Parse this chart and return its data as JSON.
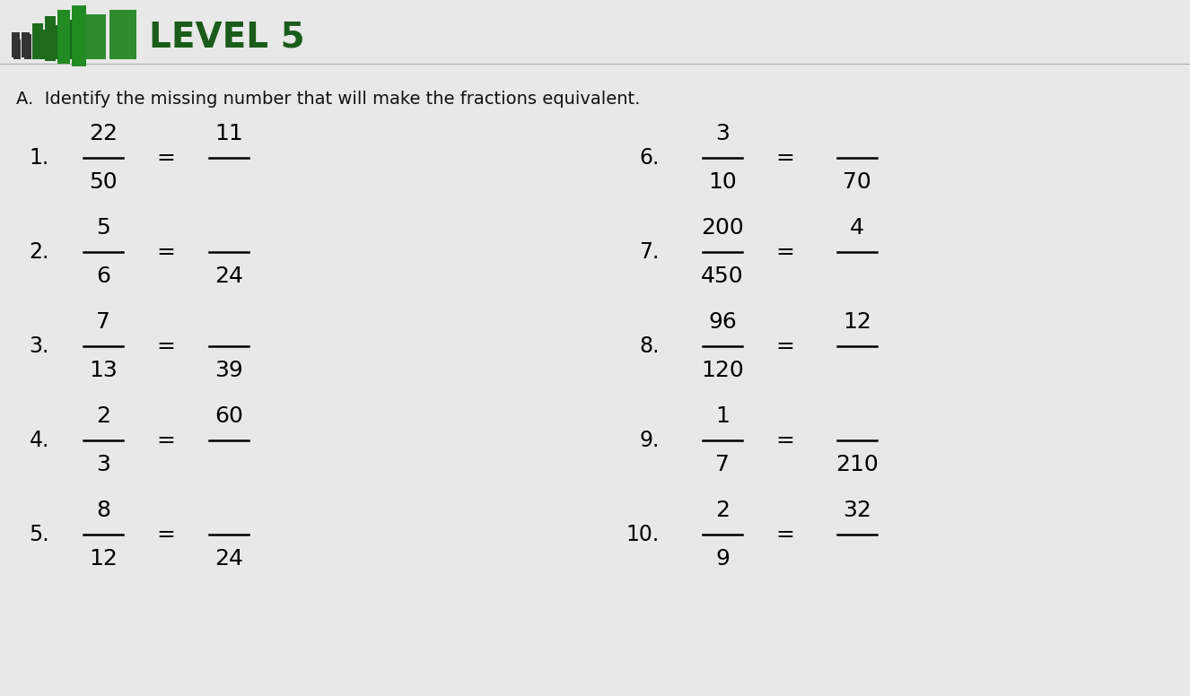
{
  "bg_color": "#e8e8e8",
  "title_bar_color": "#2e7d32",
  "title_text": "LEVEL 5",
  "instruction": "A.  Identify the missing number that will make the fractions equivalent.",
  "problems_left": [
    {
      "num": "1.",
      "frac_top": "22",
      "frac_bot": "50",
      "eq": "=",
      "ans_top": "11",
      "ans_bot": null
    },
    {
      "num": "2.",
      "frac_top": "5",
      "frac_bot": "6",
      "eq": "=",
      "ans_top": null,
      "ans_bot": "24"
    },
    {
      "num": "3.",
      "frac_top": "7",
      "frac_bot": "13",
      "eq": "=",
      "ans_top": null,
      "ans_bot": "39"
    },
    {
      "num": "4.",
      "frac_top": "2",
      "frac_bot": "3",
      "eq": "=",
      "ans_top": "60",
      "ans_bot": ""
    },
    {
      "num": "5.",
      "frac_top": "8",
      "frac_bot": "12",
      "eq": "=",
      "ans_top": null,
      "ans_bot": "24"
    }
  ],
  "problems_right": [
    {
      "num": "6.",
      "frac_top": "3",
      "frac_bot": "10",
      "eq": "=",
      "ans_top": null,
      "ans_bot": "70"
    },
    {
      "num": "7.",
      "frac_top": "200",
      "frac_bot": "450",
      "eq": "=",
      "ans_top": "4",
      "ans_bot": ""
    },
    {
      "num": "8.",
      "frac_top": "96",
      "frac_bot": "120",
      "eq": "=",
      "ans_top": "12",
      "ans_bot": ""
    },
    {
      "num": "9.",
      "frac_top": "1",
      "frac_bot": "7",
      "eq": "=",
      "ans_top": null,
      "ans_bot": "210"
    },
    {
      "num": "10.",
      "frac_top": "2",
      "frac_bot": "9",
      "eq": "=",
      "ans_top": "32",
      "ans_bot": ""
    }
  ]
}
